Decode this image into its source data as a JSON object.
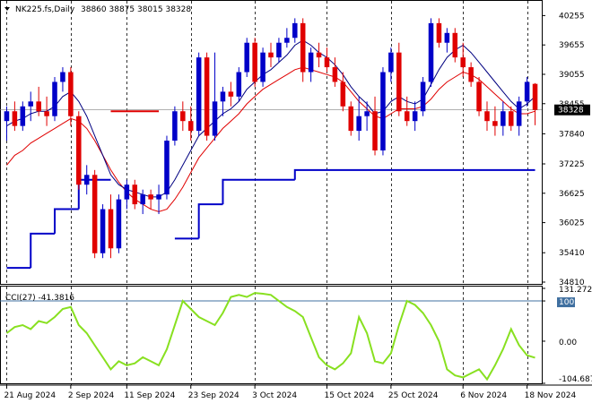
{
  "chart_data": [
    {
      "type": "candlestick",
      "title": "NK225.fs,Daily",
      "ohlc_readout": [
        "38860",
        "38875",
        "38015",
        "38328"
      ],
      "last_price_label": "38328",
      "ylim": [
        34810,
        40500
      ],
      "y_ticks": [
        "40255",
        "39655",
        "39055",
        "38455",
        "37840",
        "37225",
        "36625",
        "36025",
        "35410",
        "34810"
      ],
      "y_tick_values": [
        40255,
        39655,
        39055,
        38455,
        37840,
        37225,
        36625,
        36025,
        35410,
        34810
      ],
      "x_labels": [
        "21 Aug 2024",
        "2 Sep 2024",
        "11 Sep 2024",
        "23 Sep 2024",
        "3 Oct 2024",
        "15 Oct 2024",
        "25 Oct 2024",
        "6 Nov 2024",
        "18 Nov 2024"
      ],
      "x_label_index": [
        0,
        8,
        15,
        23,
        31,
        40,
        48,
        57,
        65
      ],
      "candles": [
        [
          38100,
          38400,
          37700,
          38300
        ],
        [
          38300,
          38500,
          37900,
          38000
        ],
        [
          38000,
          38500,
          37900,
          38400
        ],
        [
          38400,
          38700,
          38100,
          38500
        ],
        [
          38500,
          38800,
          38200,
          38300
        ],
        [
          38300,
          38600,
          38000,
          38200
        ],
        [
          38200,
          39000,
          38100,
          38900
        ],
        [
          38900,
          39200,
          38700,
          39100
        ],
        [
          39100,
          39200,
          38000,
          38200
        ],
        [
          38200,
          38300,
          36700,
          36800
        ],
        [
          36800,
          37200,
          36600,
          37000
        ],
        [
          37000,
          37100,
          35300,
          35400
        ],
        [
          35400,
          36400,
          35300,
          36300
        ],
        [
          36300,
          36600,
          35300,
          35500
        ],
        [
          35500,
          36600,
          35400,
          36500
        ],
        [
          36500,
          36900,
          36300,
          36800
        ],
        [
          36800,
          36900,
          36300,
          36400
        ],
        [
          36400,
          36700,
          36200,
          36600
        ],
        [
          36600,
          36700,
          36300,
          36500
        ],
        [
          36500,
          36800,
          36200,
          36600
        ],
        [
          36600,
          37800,
          36500,
          37700
        ],
        [
          37700,
          38400,
          37600,
          38300
        ],
        [
          38300,
          38500,
          37900,
          38100
        ],
        [
          38100,
          38400,
          37700,
          37900
        ],
        [
          37900,
          39500,
          37800,
          39400
        ],
        [
          39400,
          39500,
          37700,
          37800
        ],
        [
          37800,
          39500,
          37700,
          38500
        ],
        [
          38500,
          38800,
          38200,
          38700
        ],
        [
          38700,
          38900,
          38400,
          38600
        ],
        [
          38600,
          39200,
          38500,
          39100
        ],
        [
          39100,
          39800,
          39000,
          39700
        ],
        [
          39700,
          39800,
          38800,
          38900
        ],
        [
          38900,
          39600,
          38800,
          39500
        ],
        [
          39500,
          39700,
          39200,
          39400
        ],
        [
          39400,
          39800,
          39300,
          39700
        ],
        [
          39700,
          40000,
          39600,
          39800
        ],
        [
          39800,
          40200,
          39700,
          40100
        ],
        [
          40100,
          40200,
          38900,
          39100
        ],
        [
          39100,
          39600,
          38900,
          39500
        ],
        [
          39500,
          39700,
          39200,
          39400
        ],
        [
          39400,
          39600,
          39100,
          39200
        ],
        [
          39200,
          39400,
          38800,
          38900
        ],
        [
          38900,
          39100,
          38300,
          38400
        ],
        [
          38400,
          38500,
          37800,
          37900
        ],
        [
          37900,
          38600,
          37700,
          38200
        ],
        [
          38200,
          38500,
          37900,
          38300
        ],
        [
          38300,
          38600,
          37400,
          37500
        ],
        [
          37500,
          39200,
          37400,
          39100
        ],
        [
          39100,
          39600,
          38900,
          39500
        ],
        [
          39500,
          39700,
          38200,
          38300
        ],
        [
          38300,
          38600,
          38000,
          38100
        ],
        [
          38100,
          38500,
          37900,
          38300
        ],
        [
          38300,
          39000,
          38200,
          38900
        ],
        [
          38900,
          40200,
          38800,
          40100
        ],
        [
          40100,
          40200,
          39600,
          39700
        ],
        [
          39700,
          40000,
          39500,
          39900
        ],
        [
          39900,
          40000,
          39300,
          39400
        ],
        [
          39400,
          39700,
          39000,
          39200
        ],
        [
          39200,
          39300,
          38800,
          38900
        ],
        [
          38900,
          39000,
          38200,
          38300
        ],
        [
          38300,
          38500,
          37900,
          38100
        ],
        [
          38100,
          38400,
          37800,
          38000
        ],
        [
          38000,
          38500,
          37800,
          38300
        ],
        [
          38300,
          38400,
          37900,
          38000
        ],
        [
          38000,
          38600,
          37800,
          38500
        ],
        [
          38500,
          39000,
          38400,
          38900
        ],
        [
          38860,
          38875,
          38015,
          38328
        ]
      ],
      "ma_fast": [
        38000,
        38100,
        38150,
        38250,
        38300,
        38300,
        38400,
        38600,
        38700,
        38500,
        38200,
        37800,
        37400,
        37000,
        36800,
        36700,
        36650,
        36600,
        36550,
        36550,
        36650,
        36900,
        37200,
        37500,
        37800,
        37950,
        38100,
        38250,
        38350,
        38500,
        38750,
        38900,
        39050,
        39150,
        39300,
        39450,
        39650,
        39750,
        39650,
        39500,
        39400,
        39250,
        39050,
        38800,
        38600,
        38450,
        38250,
        38300,
        38500,
        38600,
        38500,
        38450,
        38550,
        38850,
        39150,
        39400,
        39550,
        39650,
        39500,
        39300,
        39100,
        38900,
        38700,
        38500,
        38350,
        38450,
        38600
      ],
      "ma_slow": [
        37200,
        37400,
        37500,
        37650,
        37750,
        37850,
        37950,
        38050,
        38150,
        38100,
        37950,
        37700,
        37400,
        37100,
        36850,
        36650,
        36500,
        36400,
        36300,
        36250,
        36300,
        36500,
        36750,
        37050,
        37350,
        37550,
        37750,
        37950,
        38100,
        38250,
        38450,
        38600,
        38750,
        38850,
        38950,
        39050,
        39150,
        39200,
        39150,
        39100,
        39050,
        39000,
        38900,
        38700,
        38500,
        38350,
        38200,
        38150,
        38250,
        38350,
        38350,
        38350,
        38400,
        38550,
        38750,
        38900,
        39000,
        39100,
        39050,
        38950,
        38800,
        38650,
        38500,
        38350,
        38250,
        38250,
        38300
      ],
      "stop_line": [
        {
          "from": 0,
          "to": 3,
          "value": 35100
        },
        {
          "from": 3,
          "to": 6,
          "value": 35800
        },
        {
          "from": 6,
          "to": 9,
          "value": 36300
        },
        {
          "from": 9,
          "to": 13,
          "value": 36900
        },
        {
          "from": 13,
          "to": 19,
          "value": 38300
        },
        {
          "from": 21,
          "to": 24,
          "value": 35700
        },
        {
          "from": 24,
          "to": 27,
          "value": 36400
        },
        {
          "from": 27,
          "to": 36,
          "value": 36900
        },
        {
          "from": 36,
          "to": 66,
          "value": 37100
        }
      ],
      "stop_colors": [
        "#0000c8",
        "#0000c8",
        "#0000c8",
        "#0000c8",
        "#e00000",
        "#0000c8",
        "#0000c8",
        "#0000c8",
        "#0000c8"
      ]
    },
    {
      "type": "line",
      "title": "CCI(27) -41.3816",
      "ylim": [
        -104.687,
        131.272
      ],
      "y_ticks": [
        "131.272",
        "100",
        "0.00",
        "-104.687"
      ],
      "y_tick_values": [
        131.272,
        100,
        0,
        -104.687
      ],
      "series": [
        {
          "values": [
            20,
            35,
            40,
            30,
            50,
            45,
            60,
            80,
            85,
            40,
            20,
            -10,
            -40,
            -70,
            -50,
            -60,
            -55,
            -40,
            -50,
            -60,
            -20,
            40,
            100,
            80,
            60,
            50,
            40,
            70,
            110,
            115,
            110,
            120,
            118,
            115,
            100,
            85,
            75,
            60,
            10,
            -40,
            -60,
            -70,
            -55,
            -30,
            60,
            20,
            -50,
            -55,
            -30,
            40,
            100,
            90,
            70,
            40,
            0,
            -70,
            -85,
            -90,
            -80,
            -70,
            -95,
            -60,
            -20,
            30,
            -10,
            -35,
            -41
          ]
        }
      ],
      "ref_line": 100
    }
  ],
  "colors": {
    "up_body": "#0000c8",
    "down_body": "#e00000",
    "ma_fast": "#000080",
    "ma_slow": "#e00000",
    "cci_line": "#88e020",
    "grid": "#000000",
    "price_label_bg": "#000000",
    "price_label_text": "#ffffff"
  }
}
